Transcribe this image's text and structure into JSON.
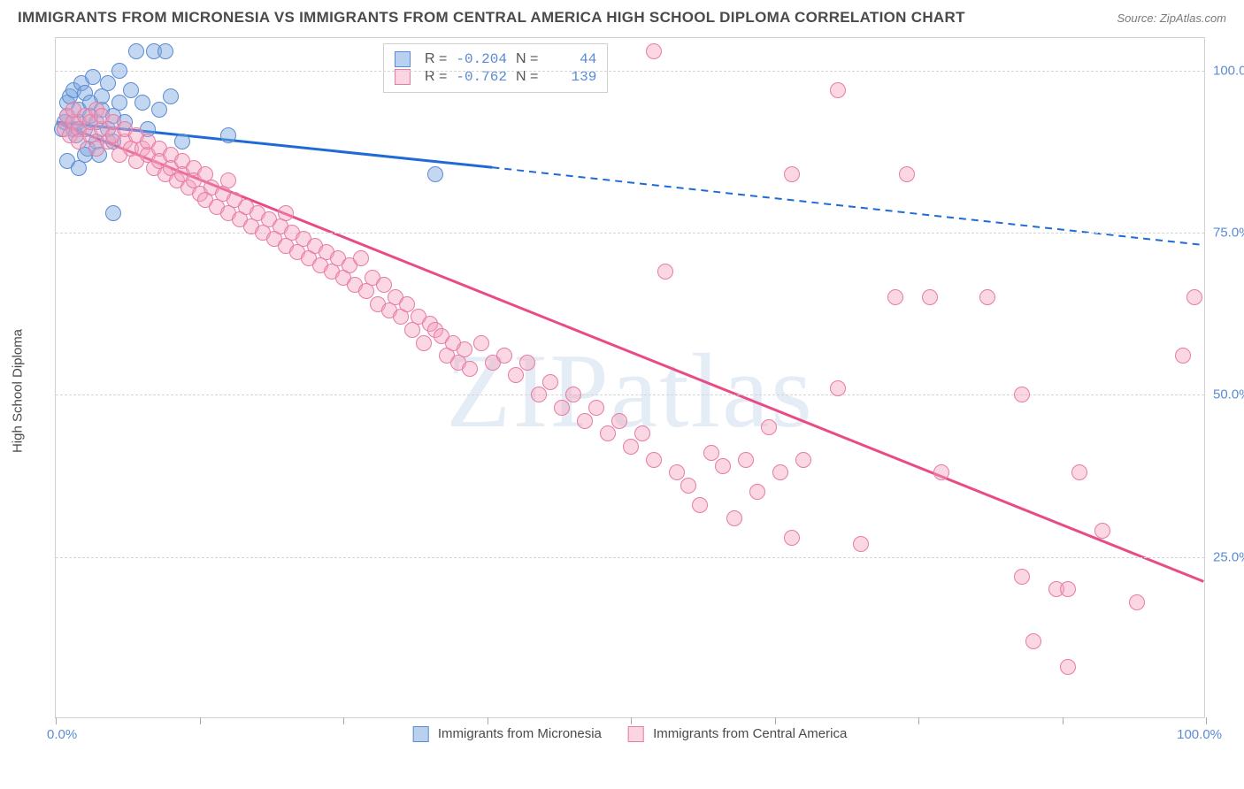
{
  "title": "IMMIGRANTS FROM MICRONESIA VS IMMIGRANTS FROM CENTRAL AMERICA HIGH SCHOOL DIPLOMA CORRELATION CHART",
  "source": "Source: ZipAtlas.com",
  "ylabel": "High School Diploma",
  "watermark": "ZIPatlas",
  "chart": {
    "type": "scatter",
    "xlim": [
      0,
      100
    ],
    "ylim": [
      0,
      105
    ],
    "xticks_pct": [
      0,
      12.5,
      25,
      37.5,
      50,
      62.5,
      75,
      87.5,
      100
    ],
    "ytick_labels": [
      {
        "y": 25,
        "label": "25.0%"
      },
      {
        "y": 50,
        "label": "50.0%"
      },
      {
        "y": 75,
        "label": "75.0%"
      },
      {
        "y": 100,
        "label": "100.0%"
      }
    ],
    "xmin_label": "0.0%",
    "xmax_label": "100.0%",
    "grid_color": "#d5d5d5",
    "background_color": "#ffffff",
    "border_color": "#d0d0d0",
    "marker_radius": 9,
    "marker_stroke_width": 1.2,
    "series": [
      {
        "name": "Immigrants from Micronesia",
        "color_fill": "rgba(123,168,222,0.45)",
        "color_stroke": "#5b8bd4",
        "swatch_fill": "#b9d1ee",
        "swatch_border": "#5b8bd4",
        "R": "-0.204",
        "N": "44",
        "trend": {
          "solid": {
            "x1": 0,
            "y1": 92,
            "x2": 38,
            "y2": 85
          },
          "dashed": {
            "x1": 38,
            "y1": 85,
            "x2": 100,
            "y2": 73
          },
          "stroke": "#1f6bd6",
          "width": 3
        },
        "points": [
          [
            0.5,
            91
          ],
          [
            0.8,
            92
          ],
          [
            1,
            93
          ],
          [
            1,
            95
          ],
          [
            1.2,
            96
          ],
          [
            1.5,
            97
          ],
          [
            1.5,
            91
          ],
          [
            1.8,
            90
          ],
          [
            2,
            92
          ],
          [
            2,
            94
          ],
          [
            2.2,
            98
          ],
          [
            2.5,
            96.5
          ],
          [
            2.5,
            91
          ],
          [
            2.8,
            88
          ],
          [
            3,
            93
          ],
          [
            3,
            95
          ],
          [
            3.2,
            99
          ],
          [
            3.5,
            92
          ],
          [
            3.5,
            89
          ],
          [
            3.8,
            87
          ],
          [
            4,
            94
          ],
          [
            4,
            96
          ],
          [
            4.5,
            98
          ],
          [
            4.5,
            91
          ],
          [
            5,
            89
          ],
          [
            5,
            93
          ],
          [
            5.5,
            95
          ],
          [
            5.5,
            100
          ],
          [
            6,
            92
          ],
          [
            6.5,
            97
          ],
          [
            7,
            103
          ],
          [
            7.5,
            95
          ],
          [
            8,
            91
          ],
          [
            8.5,
            103
          ],
          [
            9,
            94
          ],
          [
            9.5,
            103
          ],
          [
            10,
            96
          ],
          [
            11,
            89
          ],
          [
            5,
            78
          ],
          [
            1,
            86
          ],
          [
            2,
            85
          ],
          [
            2.5,
            87
          ],
          [
            15,
            90
          ],
          [
            33,
            84
          ]
        ]
      },
      {
        "name": "Immigrants from Central America",
        "color_fill": "rgba(244,160,188,0.42)",
        "color_stroke": "#e77ba6",
        "swatch_fill": "#fcd5e2",
        "swatch_border": "#e77ba6",
        "R": "-0.762",
        "N": "139",
        "trend": {
          "solid": {
            "x1": 0,
            "y1": 92,
            "x2": 100,
            "y2": 21
          },
          "dashed": null,
          "stroke": "#e94b86",
          "width": 3
        },
        "points": [
          [
            0.8,
            91
          ],
          [
            1,
            93
          ],
          [
            1.2,
            90
          ],
          [
            1.5,
            92
          ],
          [
            1.5,
            94
          ],
          [
            2,
            91
          ],
          [
            2,
            89
          ],
          [
            2.5,
            93
          ],
          [
            3,
            90
          ],
          [
            3,
            92
          ],
          [
            3.5,
            94
          ],
          [
            3.5,
            88
          ],
          [
            4,
            91
          ],
          [
            4,
            93
          ],
          [
            4.5,
            89
          ],
          [
            5,
            90
          ],
          [
            5,
            92
          ],
          [
            5.5,
            87
          ],
          [
            6,
            89
          ],
          [
            6,
            91
          ],
          [
            6.5,
            88
          ],
          [
            7,
            90
          ],
          [
            7,
            86
          ],
          [
            7.5,
            88
          ],
          [
            8,
            87
          ],
          [
            8,
            89
          ],
          [
            8.5,
            85
          ],
          [
            9,
            88
          ],
          [
            9,
            86
          ],
          [
            9.5,
            84
          ],
          [
            10,
            87
          ],
          [
            10,
            85
          ],
          [
            10.5,
            83
          ],
          [
            11,
            86
          ],
          [
            11,
            84
          ],
          [
            11.5,
            82
          ],
          [
            12,
            85
          ],
          [
            12,
            83
          ],
          [
            12.5,
            81
          ],
          [
            13,
            84
          ],
          [
            13,
            80
          ],
          [
            13.5,
            82
          ],
          [
            14,
            79
          ],
          [
            14.5,
            81
          ],
          [
            15,
            78
          ],
          [
            15,
            83
          ],
          [
            15.5,
            80
          ],
          [
            16,
            77
          ],
          [
            16.5,
            79
          ],
          [
            17,
            76
          ],
          [
            17.5,
            78
          ],
          [
            18,
            75
          ],
          [
            18.5,
            77
          ],
          [
            19,
            74
          ],
          [
            19.5,
            76
          ],
          [
            20,
            73
          ],
          [
            20,
            78
          ],
          [
            20.5,
            75
          ],
          [
            21,
            72
          ],
          [
            21.5,
            74
          ],
          [
            22,
            71
          ],
          [
            22.5,
            73
          ],
          [
            23,
            70
          ],
          [
            23.5,
            72
          ],
          [
            24,
            69
          ],
          [
            24.5,
            71
          ],
          [
            25,
            68
          ],
          [
            25.5,
            70
          ],
          [
            26,
            67
          ],
          [
            26.5,
            71
          ],
          [
            27,
            66
          ],
          [
            27.5,
            68
          ],
          [
            28,
            64
          ],
          [
            28.5,
            67
          ],
          [
            29,
            63
          ],
          [
            29.5,
            65
          ],
          [
            30,
            62
          ],
          [
            30.5,
            64
          ],
          [
            31,
            60
          ],
          [
            31.5,
            62
          ],
          [
            32,
            58
          ],
          [
            32.5,
            61
          ],
          [
            33,
            60
          ],
          [
            33.5,
            59
          ],
          [
            34,
            56
          ],
          [
            34.5,
            58
          ],
          [
            35,
            55
          ],
          [
            35.5,
            57
          ],
          [
            36,
            54
          ],
          [
            37,
            58
          ],
          [
            38,
            55
          ],
          [
            39,
            56
          ],
          [
            40,
            53
          ],
          [
            41,
            55
          ],
          [
            42,
            50
          ],
          [
            43,
            52
          ],
          [
            44,
            48
          ],
          [
            45,
            50
          ],
          [
            46,
            46
          ],
          [
            47,
            48
          ],
          [
            48,
            44
          ],
          [
            49,
            46
          ],
          [
            50,
            42
          ],
          [
            51,
            44
          ],
          [
            52,
            40
          ],
          [
            53,
            69
          ],
          [
            54,
            38
          ],
          [
            55,
            36
          ],
          [
            56,
            33
          ],
          [
            57,
            41
          ],
          [
            58,
            39
          ],
          [
            59,
            31
          ],
          [
            60,
            40
          ],
          [
            61,
            35
          ],
          [
            62,
            45
          ],
          [
            63,
            38
          ],
          [
            64,
            28
          ],
          [
            65,
            40
          ],
          [
            52,
            103
          ],
          [
            64,
            84
          ],
          [
            68,
            97
          ],
          [
            74,
            84
          ],
          [
            73,
            65
          ],
          [
            68,
            51
          ],
          [
            76,
            65
          ],
          [
            81,
            65
          ],
          [
            84,
            50
          ],
          [
            84,
            22
          ],
          [
            85,
            12
          ],
          [
            87,
            20
          ],
          [
            88,
            20
          ],
          [
            88,
            8
          ],
          [
            91,
            29
          ],
          [
            94,
            18
          ],
          [
            98,
            56
          ],
          [
            99,
            65
          ],
          [
            89,
            38
          ],
          [
            77,
            38
          ],
          [
            70,
            27
          ]
        ]
      }
    ]
  },
  "legend": {
    "series1_label": "Immigrants from Micronesia",
    "series2_label": "Immigrants from Central America"
  },
  "stats_labels": {
    "R": "R =",
    "N": "N ="
  }
}
